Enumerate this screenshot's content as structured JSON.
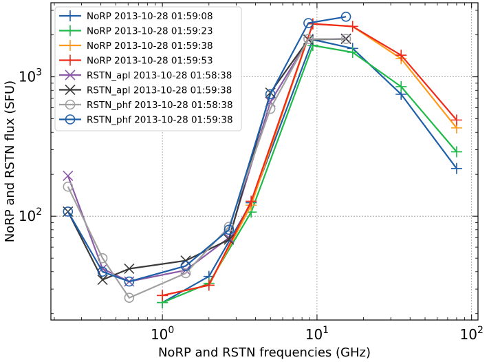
{
  "chart_data": {
    "type": "line",
    "title": "",
    "xlabel": "NoRP and RSTN frequencies (GHz)",
    "ylabel": "NoRP and RSTN flux (SFU)",
    "xscale": "log",
    "yscale": "log",
    "xlim": [
      0.19,
      110
    ],
    "ylim": [
      18,
      3400
    ],
    "grid": true,
    "legend_position": "upper-left",
    "x_ticks": [
      {
        "value": 1,
        "base": "10",
        "exp": "0"
      },
      {
        "value": 10,
        "base": "10",
        "exp": "1"
      },
      {
        "value": 100,
        "base": "10",
        "exp": "2"
      }
    ],
    "y_ticks": [
      {
        "value": 100,
        "base": "10",
        "exp": "2"
      },
      {
        "value": 1000,
        "base": "10",
        "exp": "3"
      }
    ],
    "series": [
      {
        "name": "NoRP 2013-10-28 01:59:08",
        "color": "#1f5fa8",
        "marker": "plus",
        "x": [
          1.0,
          2.0,
          3.75,
          9.4,
          17.0,
          35.0,
          80.0
        ],
        "y": [
          24,
          37,
          125,
          1850,
          1600,
          750,
          220
        ]
      },
      {
        "name": "NoRP 2013-10-28 01:59:23",
        "color": "#1fba4a",
        "marker": "plus",
        "x": [
          1.0,
          2.0,
          3.75,
          9.4,
          17.0,
          35.0,
          80.0
        ],
        "y": [
          24,
          33,
          107,
          1680,
          1500,
          850,
          290
        ]
      },
      {
        "name": "NoRP 2013-10-28 01:59:38",
        "color": "#ff9a1a",
        "marker": "plus",
        "x": [
          1.0,
          2.0,
          3.75,
          9.4,
          17.0,
          35.0,
          80.0
        ],
        "y": [
          27,
          32,
          120,
          2400,
          2300,
          1350,
          430
        ]
      },
      {
        "name": "NoRP 2013-10-28 01:59:53",
        "color": "#ee2a1a",
        "marker": "plus",
        "x": [
          1.0,
          2.0,
          3.75,
          9.4,
          17.0,
          35.0,
          80.0
        ],
        "y": [
          27,
          32,
          128,
          2400,
          2300,
          1430,
          490
        ]
      },
      {
        "name": "RSTN_apl 2013-10-28 01:58:38",
        "color": "#8c5ba8",
        "marker": "x",
        "x": [
          0.245,
          0.41,
          0.61,
          1.415,
          2.695,
          4.995,
          8.8,
          15.4
        ],
        "y": [
          195,
          42,
          34,
          41,
          70,
          660,
          1850,
          1880
        ]
      },
      {
        "name": "RSTN_apl 2013-10-28 01:59:38",
        "color": "#3a3a3a",
        "marker": "x",
        "x": [
          0.245,
          0.41,
          0.61,
          1.415,
          2.695,
          4.995,
          8.8,
          15.4
        ],
        "y": [
          108,
          35,
          42,
          48,
          68,
          770,
          1850,
          1870
        ]
      },
      {
        "name": "RSTN_phf 2013-10-28 01:58:38",
        "color": "#a0a0a0",
        "marker": "circle",
        "x": [
          0.245,
          0.41,
          0.61,
          1.415,
          2.695,
          4.995,
          8.8,
          15.4
        ],
        "y": [
          163,
          50,
          26,
          39,
          84,
          590,
          1870,
          1870
        ]
      },
      {
        "name": "RSTN_phf 2013-10-28 01:59:38",
        "color": "#1f5fa8",
        "marker": "circle",
        "x": [
          0.245,
          0.41,
          0.61,
          1.415,
          2.695,
          4.995,
          8.8,
          15.4
        ],
        "y": [
          108,
          40,
          34,
          44,
          80,
          750,
          2430,
          2700
        ]
      }
    ]
  }
}
